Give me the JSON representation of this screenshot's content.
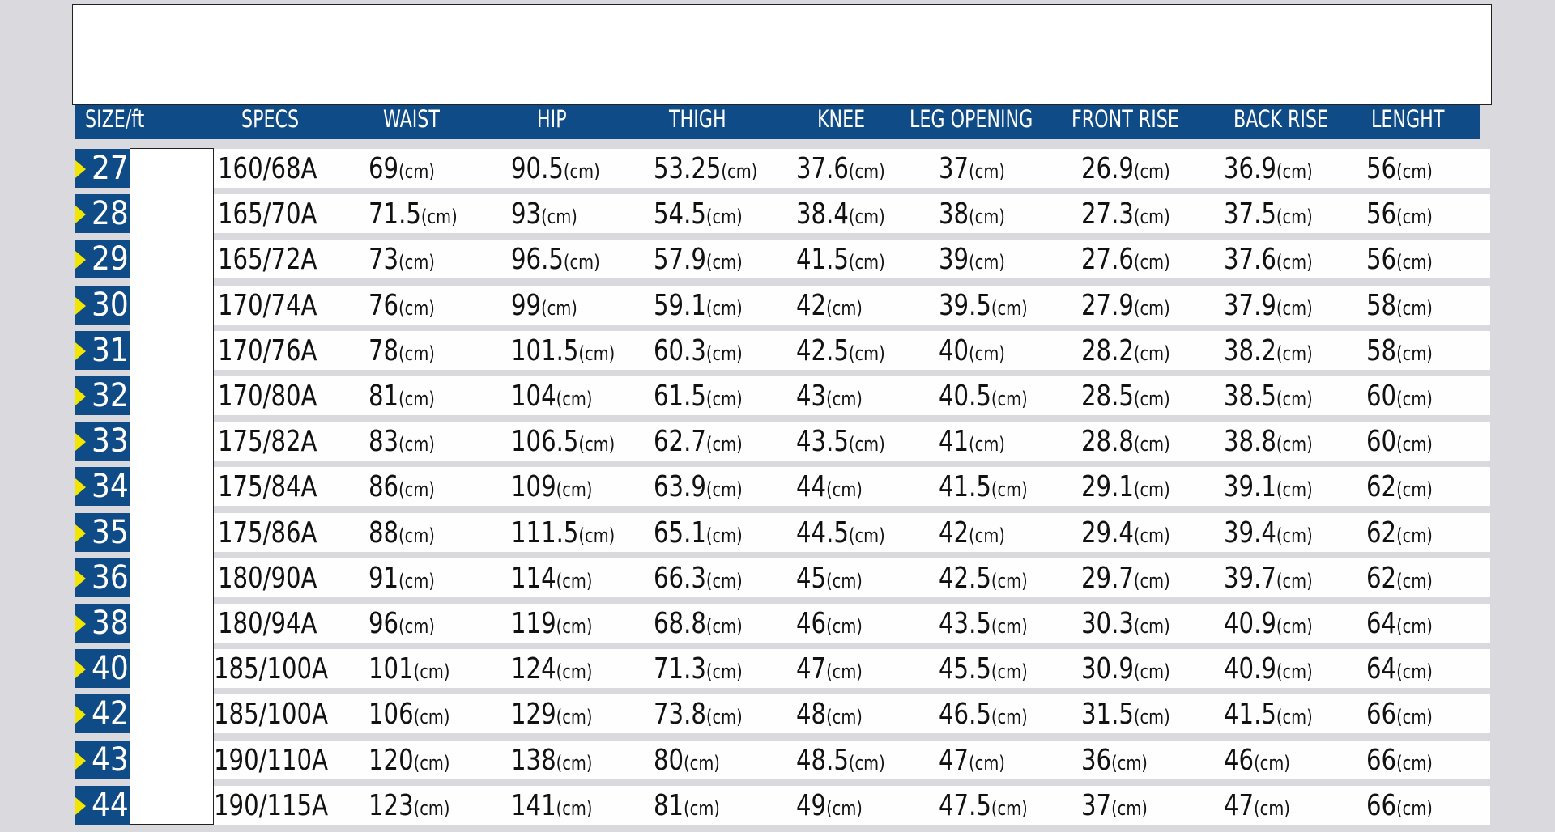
{
  "colors": {
    "header_bg": "#0e4b87",
    "marker": "#f2e600",
    "page_bg": "#d9d9de"
  },
  "headers": [
    "SIZE/ft",
    "SPECS",
    "WAIST",
    "HIP",
    "THIGH",
    "KNEE",
    "LEG OPENING",
    "FRONT RISE",
    "BACK RISE",
    "LENGHT"
  ],
  "unit": "(cm)",
  "rows": [
    {
      "size": "27",
      "specs": "160/68A",
      "values": [
        "69",
        "90.5",
        "53.25",
        "37.6",
        "37",
        "26.9",
        "36.9",
        "56"
      ]
    },
    {
      "size": "28",
      "specs": "165/70A",
      "values": [
        "71.5",
        "93",
        "54.5",
        "38.4",
        "38",
        "27.3",
        "37.5",
        "56"
      ]
    },
    {
      "size": "29",
      "specs": "165/72A",
      "values": [
        "73",
        "96.5",
        "57.9",
        "41.5",
        "39",
        "27.6",
        "37.6",
        "56"
      ]
    },
    {
      "size": "30",
      "specs": "170/74A",
      "values": [
        "76",
        "99",
        "59.1",
        "42",
        "39.5",
        "27.9",
        "37.9",
        "58"
      ]
    },
    {
      "size": "31",
      "specs": "170/76A",
      "values": [
        "78",
        "101.5",
        "60.3",
        "42.5",
        "40",
        "28.2",
        "38.2",
        "58"
      ]
    },
    {
      "size": "32",
      "specs": "170/80A",
      "values": [
        "81",
        "104",
        "61.5",
        "43",
        "40.5",
        "28.5",
        "38.5",
        "60"
      ]
    },
    {
      "size": "33",
      "specs": "175/82A",
      "values": [
        "83",
        "106.5",
        "62.7",
        "43.5",
        "41",
        "28.8",
        "38.8",
        "60"
      ]
    },
    {
      "size": "34",
      "specs": "175/84A",
      "values": [
        "86",
        "109",
        "63.9",
        "44",
        "41.5",
        "29.1",
        "39.1",
        "62"
      ]
    },
    {
      "size": "35",
      "specs": "175/86A",
      "values": [
        "88",
        "111.5",
        "65.1",
        "44.5",
        "42",
        "29.4",
        "39.4",
        "62"
      ]
    },
    {
      "size": "36",
      "specs": "180/90A",
      "values": [
        "91",
        "114",
        "66.3",
        "45",
        "42.5",
        "29.7",
        "39.7",
        "62"
      ]
    },
    {
      "size": "38",
      "specs": "180/94A",
      "values": [
        "96",
        "119",
        "68.8",
        "46",
        "43.5",
        "30.3",
        "40.9",
        "64"
      ]
    },
    {
      "size": "40",
      "specs": "185/100A",
      "values": [
        "101",
        "124",
        "71.3",
        "47",
        "45.5",
        "30.9",
        "40.9",
        "64"
      ]
    },
    {
      "size": "42",
      "specs": "185/100A",
      "values": [
        "106",
        "129",
        "73.8",
        "48",
        "46.5",
        "31.5",
        "41.5",
        "66"
      ]
    },
    {
      "size": "43",
      "specs": "190/110A",
      "values": [
        "120",
        "138",
        "80",
        "48.5",
        "47",
        "36",
        "46",
        "66"
      ]
    },
    {
      "size": "44",
      "specs": "190/115A",
      "values": [
        "123",
        "141",
        "81",
        "49",
        "47.5",
        "37",
        "47",
        "66"
      ]
    }
  ]
}
